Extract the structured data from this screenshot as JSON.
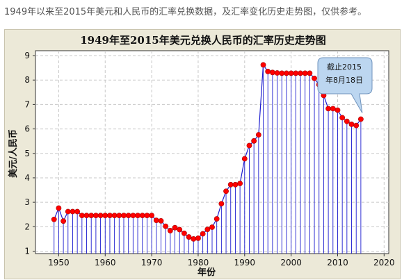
{
  "caption": "1949年以来至2015年美元和人民币的汇率兑换数据，及汇率变化历史走势图，仅供参考。",
  "callout": {
    "line1": "截止2015",
    "line2": "年8月18日"
  },
  "colors": {
    "line": "#1c1ccf",
    "marker": "#ff0000",
    "panel": "#ece9d8",
    "callout": "#bcd6f0"
  },
  "chart_data": {
    "type": "line",
    "title": "1949年至2015年美元兑换人民币的汇率历史走势图",
    "xlabel": "年份",
    "ylabel": "美元/人民币",
    "xlim": [
      1945,
      2021
    ],
    "ylim": [
      0.9,
      9.2
    ],
    "xticks": [
      1950,
      1960,
      1970,
      1980,
      1990,
      2000,
      2010,
      2020
    ],
    "yticks": [
      1,
      2,
      3,
      4,
      5,
      6,
      7,
      8,
      9
    ],
    "grid": true,
    "drop_lines": true,
    "x": [
      1949,
      1950,
      1951,
      1952,
      1953,
      1954,
      1955,
      1956,
      1957,
      1958,
      1959,
      1960,
      1961,
      1962,
      1963,
      1964,
      1965,
      1966,
      1967,
      1968,
      1969,
      1970,
      1971,
      1972,
      1973,
      1974,
      1975,
      1976,
      1977,
      1978,
      1979,
      1980,
      1981,
      1982,
      1983,
      1984,
      1985,
      1986,
      1987,
      1988,
      1989,
      1990,
      1991,
      1992,
      1993,
      1994,
      1995,
      1996,
      1997,
      1998,
      1999,
      2000,
      2001,
      2002,
      2003,
      2004,
      2005,
      2006,
      2007,
      2008,
      2009,
      2010,
      2011,
      2012,
      2013,
      2014,
      2015
    ],
    "y": [
      2.3,
      2.76,
      2.23,
      2.62,
      2.62,
      2.62,
      2.46,
      2.46,
      2.46,
      2.46,
      2.46,
      2.46,
      2.46,
      2.46,
      2.46,
      2.46,
      2.46,
      2.46,
      2.46,
      2.46,
      2.46,
      2.46,
      2.26,
      2.24,
      2.02,
      1.84,
      1.96,
      1.88,
      1.73,
      1.58,
      1.5,
      1.53,
      1.71,
      1.89,
      1.98,
      2.32,
      2.94,
      3.45,
      3.72,
      3.72,
      3.77,
      4.78,
      5.32,
      5.51,
      5.76,
      8.62,
      8.35,
      8.31,
      8.29,
      8.28,
      8.28,
      8.28,
      8.28,
      8.28,
      8.28,
      8.28,
      8.07,
      7.81,
      7.37,
      6.83,
      6.83,
      6.77,
      6.46,
      6.31,
      6.19,
      6.14,
      6.4
    ]
  }
}
